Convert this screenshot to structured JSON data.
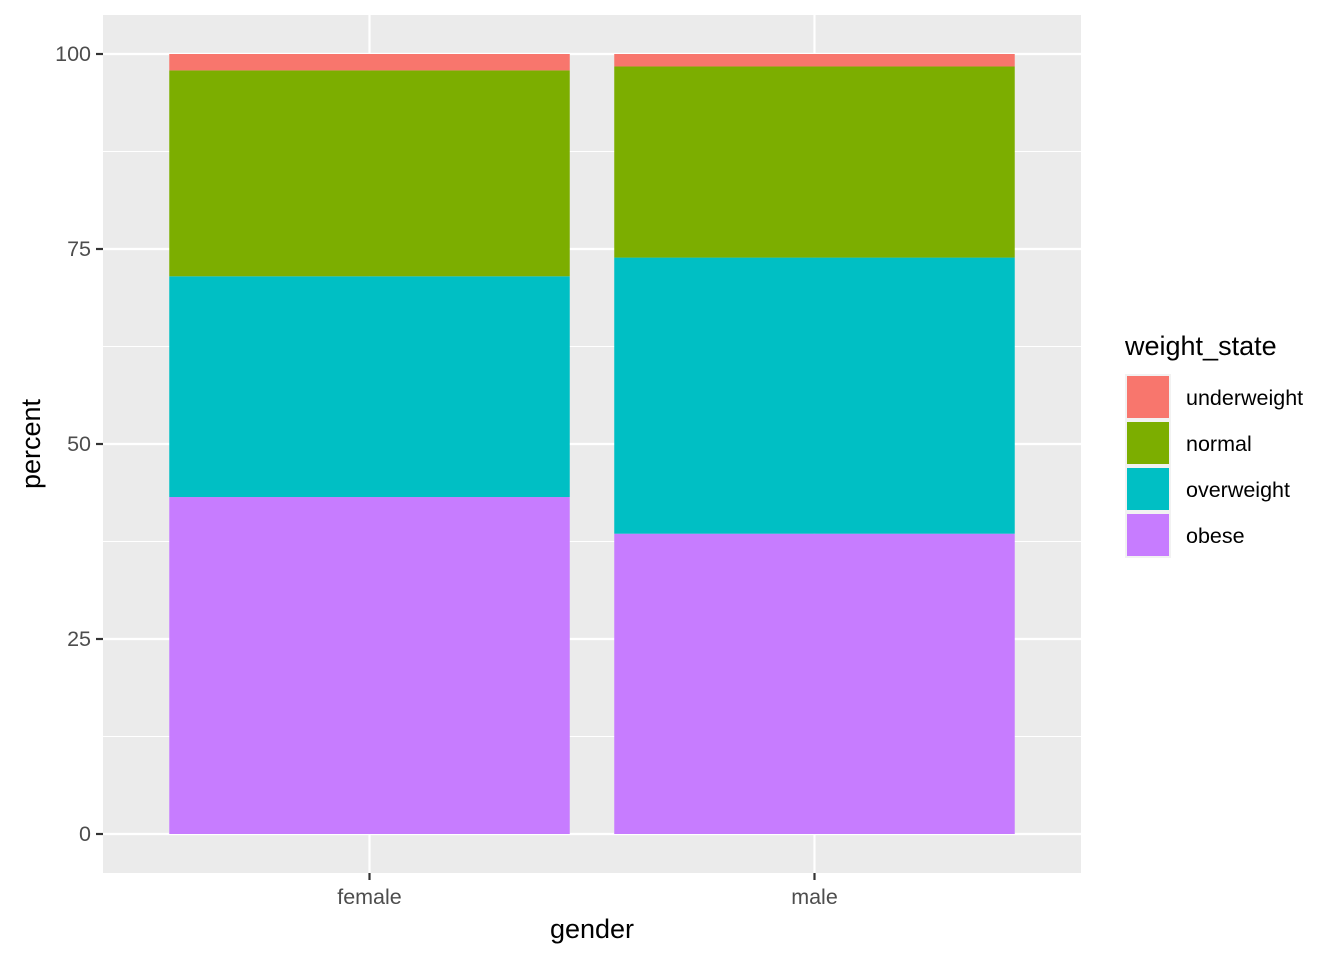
{
  "chart_data": {
    "type": "bar",
    "stacked": true,
    "categories": [
      "female",
      "male"
    ],
    "series": [
      {
        "name": "obese",
        "color": "#C77CFF",
        "values": [
          43.2,
          38.5
        ]
      },
      {
        "name": "overweight",
        "color": "#00BFC4",
        "values": [
          28.3,
          35.4
        ]
      },
      {
        "name": "normal",
        "color": "#7CAE00",
        "values": [
          26.4,
          24.5
        ]
      },
      {
        "name": "underweight",
        "color": "#F8766D",
        "values": [
          2.1,
          1.6
        ]
      }
    ],
    "legend_order": [
      "underweight",
      "normal",
      "overweight",
      "obese"
    ],
    "legend_title": "weight_state",
    "legend_position": "right",
    "xlabel": "gender",
    "ylabel": "percent",
    "ylim": [
      -5,
      105
    ],
    "yticks": [
      0,
      25,
      50,
      75,
      100
    ],
    "grid": true,
    "panel_background": "#EBEBEB"
  }
}
